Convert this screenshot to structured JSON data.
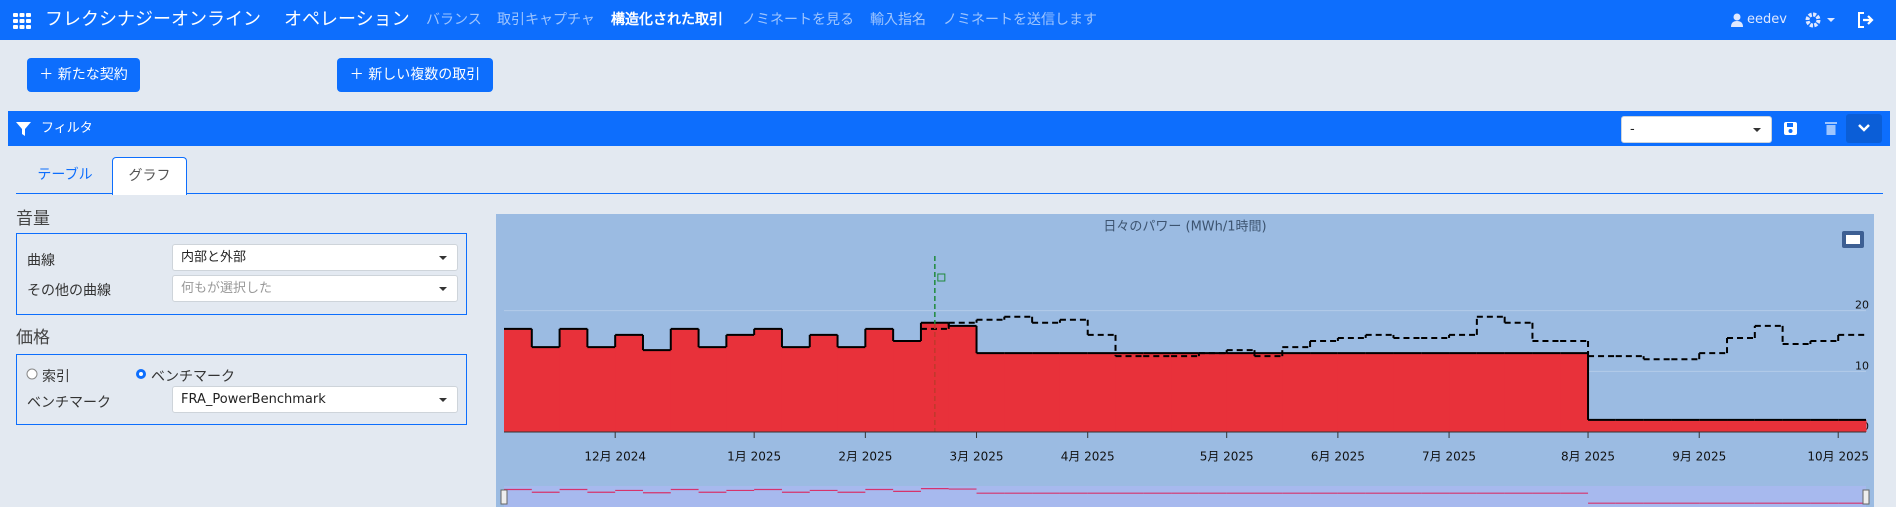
{
  "navbar": {
    "brand": "フレクシナジーオンライン",
    "section": "オペレーション",
    "links": [
      "バランス",
      "取引キャプチャ",
      "構造化された取引",
      "ノミネートを見る",
      "輸入指名",
      "ノミネートを送信します"
    ],
    "user": "eedev"
  },
  "buttons": [
    "新たな契約",
    "新しい複数の取引"
  ],
  "filter": {
    "title": "フィルタ",
    "selected": "-"
  },
  "tabs": [
    "テーブル",
    "グラフ"
  ],
  "volume": {
    "title": "音量",
    "curve_label": "曲線",
    "curve_value": "内部と外部",
    "other_label": "その他の曲線",
    "other_placeholder": "何もが選択した"
  },
  "price": {
    "title": "価格",
    "options": [
      "索引",
      "ベンチマーク"
    ],
    "benchmark_label": "ベンチマーク",
    "benchmark_value": "FRA_PowerBenchmark"
  },
  "chart_data": {
    "type": "step",
    "title": "日々のパワー (MWh/1時間)",
    "categories": [
      null,
      null,
      null,
      null,
      "12月 2024",
      null,
      null,
      null,
      null,
      "1月 2025",
      null,
      null,
      null,
      "2月 2025",
      null,
      null,
      null,
      "3月 2025",
      null,
      null,
      null,
      "4月 2025",
      null,
      null,
      null,
      null,
      "5月 2025",
      null,
      null,
      null,
      "6月 2025",
      null,
      null,
      null,
      "7月 2025",
      null,
      null,
      null,
      null,
      "8月 2025",
      null,
      null,
      null,
      "9月 2025",
      null,
      null,
      null,
      null,
      "10月 2025"
    ],
    "series": [
      {
        "style": "area",
        "color": "#e8313a",
        "values": [
          17,
          14,
          17,
          14,
          16,
          13.5,
          17,
          14,
          16,
          17,
          14,
          16,
          14,
          17,
          15,
          18,
          17.5,
          13,
          13,
          13,
          13,
          13,
          13,
          13,
          13,
          13,
          13,
          13,
          13,
          13,
          13,
          13,
          13,
          13,
          13,
          13,
          13,
          13,
          13,
          2,
          2,
          2,
          2,
          2,
          2,
          2,
          2,
          2,
          2
        ]
      },
      {
        "style": "dashed",
        "color": "#000000",
        "values": [
          null,
          null,
          null,
          null,
          null,
          null,
          null,
          null,
          null,
          null,
          null,
          null,
          null,
          null,
          null,
          17,
          18,
          18.5,
          19,
          18,
          18.5,
          16,
          12.5,
          12.5,
          12.5,
          13,
          13.5,
          12.5,
          14,
          15,
          15.5,
          16,
          15.5,
          15.5,
          16,
          19,
          18,
          15,
          15,
          12.5,
          12.5,
          12,
          12,
          13,
          15.5,
          17.5,
          14.5,
          15,
          16
        ]
      }
    ],
    "ylim": [
      0,
      30
    ],
    "yticks": [
      0,
      10,
      20
    ],
    "grid": true
  }
}
